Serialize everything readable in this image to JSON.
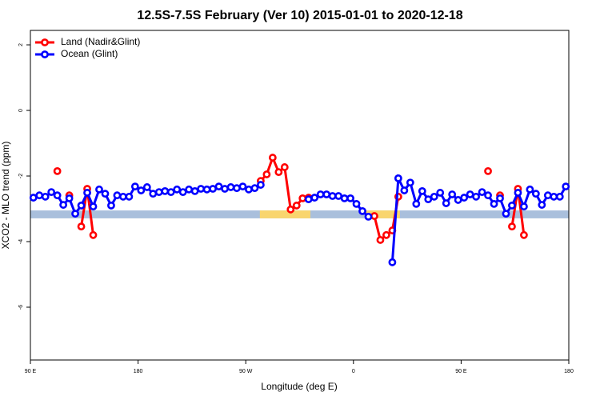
{
  "chart_data": {
    "type": "line",
    "title": "12.5S-7.5S February (Ver 10)   2015-01-01 to 2020-12-18",
    "x_label": "Longitude (deg E)",
    "y_label": "XCO2 - MLO trend (ppm)",
    "xlim": [
      90,
      540
    ],
    "ylim": [
      -7.61,
      2.44
    ],
    "xticks": [
      {
        "value": 90,
        "label": "90 E"
      },
      180,
      {
        "value": 270,
        "label": "90 W"
      },
      {
        "value": 360,
        "label": "0"
      },
      {
        "value": 450,
        "label": "90 E"
      },
      {
        "value": 540,
        "label": "180"
      }
    ],
    "yticks": [
      2,
      0,
      -2,
      -4,
      -6
    ],
    "legend": "top-left",
    "band": {
      "ylim": [
        -3.29,
        -3.05
      ],
      "color": "#a9bfdc",
      "land": [
        [
          281.8,
          324
        ],
        [
          370.7,
          398.8
        ]
      ],
      "land_color": "#f9d56e"
    },
    "x": [
      92.5,
      97.5,
      102.5,
      107.5,
      112.5,
      117.5,
      122.5,
      127.5,
      132.5,
      137.5,
      142.5,
      147.5,
      152.5,
      157.5,
      162.5,
      167.5,
      172.5,
      177.5,
      182.5,
      187.5,
      192.5,
      197.5,
      202.5,
      207.5,
      212.5,
      217.5,
      222.5,
      227.5,
      232.5,
      237.5,
      242.5,
      247.5,
      252.5,
      257.5,
      262.5,
      267.5,
      272.5,
      277.5,
      282.5,
      287.5,
      292.5,
      297.5,
      302.5,
      307.5,
      312.5,
      317.5,
      322.5,
      327.5,
      332.5,
      337.5,
      342.5,
      347.5,
      352.5,
      357.5,
      362.5,
      367.5,
      372.5,
      377.5,
      382.5,
      387.5,
      392.5,
      397.5,
      402.5,
      407.5,
      412.5,
      417.5,
      422.5,
      427.5,
      432.5,
      437.5,
      442.5,
      447.5,
      452.5,
      457.5,
      462.5,
      467.5,
      472.5,
      477.5,
      482.5,
      487.5,
      492.5,
      497.5,
      502.5,
      507.5,
      512.5,
      517.5,
      522.5,
      527.5,
      532.5,
      537.5
    ],
    "series": [
      {
        "name": "Land (Nadir&Glint)",
        "color": "#ff0000",
        "values": [
          null,
          null,
          null,
          null,
          -1.85,
          null,
          -2.59,
          null,
          -3.54,
          -2.39,
          -3.8,
          null,
          null,
          null,
          null,
          null,
          null,
          null,
          null,
          null,
          null,
          null,
          null,
          null,
          null,
          null,
          null,
          null,
          null,
          null,
          null,
          null,
          null,
          null,
          null,
          null,
          null,
          null,
          -2.15,
          -1.95,
          -1.44,
          -1.88,
          -1.73,
          -3.02,
          -2.9,
          -2.68,
          -2.66,
          null,
          null,
          null,
          null,
          null,
          null,
          null,
          null,
          null,
          null,
          -3.22,
          -3.95,
          -3.8,
          -3.66,
          -2.63,
          null,
          null,
          null,
          null,
          null,
          null,
          null,
          null,
          null,
          null,
          null,
          null,
          null,
          null,
          -1.85,
          null,
          -2.59,
          null,
          -3.54,
          -2.39,
          -3.8,
          null,
          null,
          null,
          null,
          null,
          null,
          null
        ]
      },
      {
        "name": "Ocean (Glint)",
        "color": "#0000ff",
        "values": [
          -2.66,
          -2.59,
          -2.63,
          -2.49,
          -2.59,
          -2.88,
          -2.68,
          -3.15,
          -2.9,
          -2.51,
          -2.93,
          -2.41,
          -2.54,
          -2.9,
          -2.59,
          -2.63,
          -2.63,
          -2.32,
          -2.44,
          -2.34,
          -2.54,
          -2.49,
          -2.46,
          -2.49,
          -2.41,
          -2.49,
          -2.41,
          -2.46,
          -2.39,
          -2.41,
          -2.39,
          -2.32,
          -2.39,
          -2.34,
          -2.37,
          -2.32,
          -2.41,
          -2.37,
          -2.27,
          null,
          null,
          null,
          null,
          null,
          null,
          null,
          -2.71,
          -2.66,
          -2.56,
          -2.56,
          -2.61,
          -2.61,
          -2.68,
          -2.68,
          -2.85,
          -3.07,
          -3.24,
          null,
          null,
          null,
          -4.63,
          -2.07,
          -2.44,
          -2.2,
          -2.85,
          -2.46,
          -2.71,
          -2.63,
          -2.51,
          -2.83,
          -2.56,
          -2.73,
          -2.66,
          -2.56,
          -2.63,
          -2.49,
          -2.59,
          -2.85,
          -2.68,
          -3.15,
          -2.9,
          -2.51,
          -2.93,
          -2.41,
          -2.54,
          -2.88,
          -2.59,
          -2.63,
          -2.63,
          -2.32
        ]
      }
    ]
  }
}
